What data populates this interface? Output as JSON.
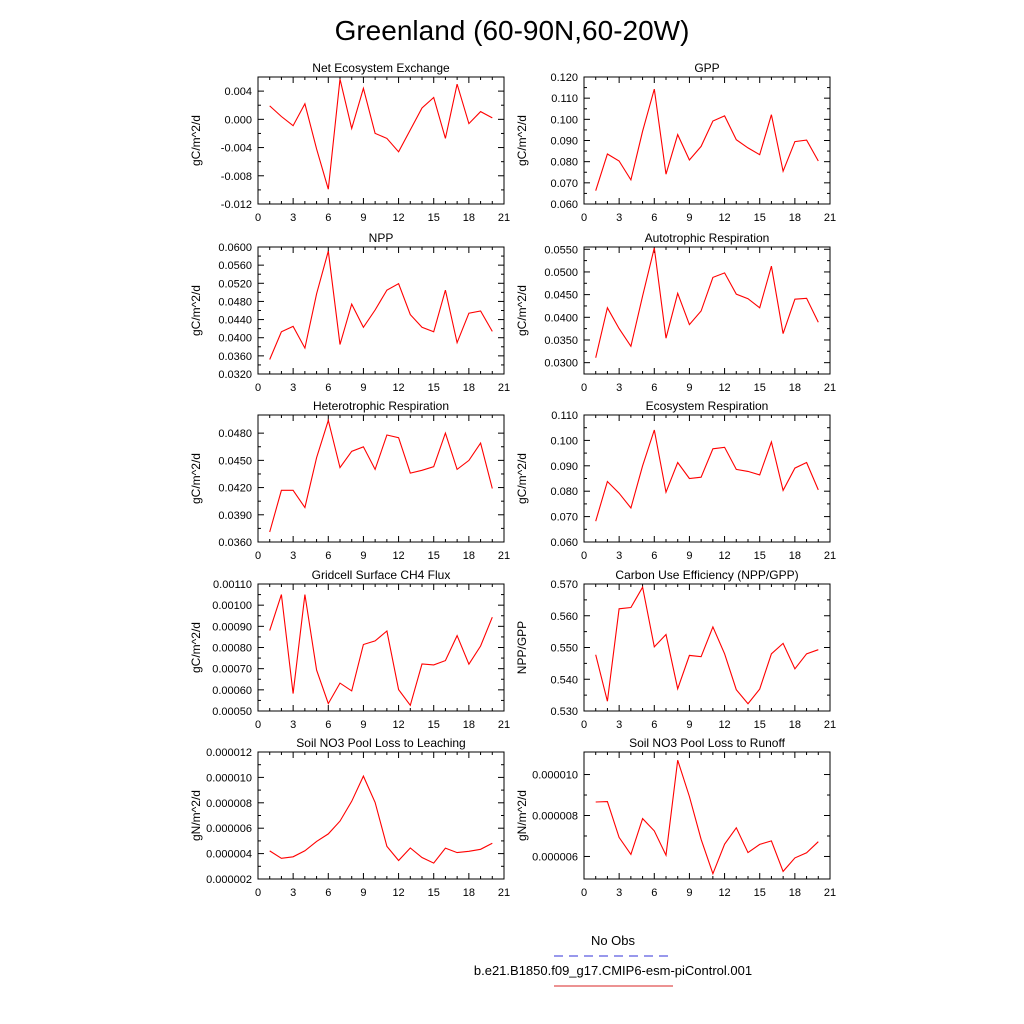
{
  "figure": {
    "title": "Greenland (60-90N,60-20W)",
    "legend": [
      {
        "label": "No Obs",
        "color": "#5a5ae0",
        "dash": true
      },
      {
        "label": "b.e21.B1850.f09_g17.CMIP6-esm-piControl.001",
        "color": "#e05050",
        "dash": false
      }
    ],
    "colors": {
      "series": "#ff0000",
      "axis": "#000000"
    }
  },
  "chart_data": [
    {
      "type": "line",
      "title": "Net Ecosystem Exchange",
      "ylabel": "gC/m^2/d",
      "xlim": [
        0,
        21
      ],
      "xticks": [
        "0",
        "3",
        "6",
        "9",
        "12",
        "15",
        "18",
        "21"
      ],
      "ylim": [
        -0.012,
        0.006
      ],
      "yticks": [
        "-0.012",
        "-0.008",
        "-0.004",
        "0.000",
        "0.004"
      ],
      "x": [
        1,
        2,
        3,
        4,
        5,
        6,
        7,
        8,
        9,
        10,
        11,
        12,
        13,
        14,
        15,
        16,
        17,
        18,
        19,
        20
      ],
      "series": [
        {
          "values": [
            0.0019,
            0.0004,
            -0.0009,
            0.0022,
            -0.0042,
            -0.0099,
            0.0057,
            -0.0013,
            0.0044,
            -0.002,
            -0.0027,
            -0.0046,
            -0.0015,
            0.0016,
            0.0031,
            -0.0027,
            0.005,
            -0.0006,
            0.0011,
            0.0002
          ]
        }
      ]
    },
    {
      "type": "line",
      "title": "GPP",
      "ylabel": "gC/m^2/d",
      "xlim": [
        0,
        21
      ],
      "xticks": [
        "0",
        "3",
        "6",
        "9",
        "12",
        "15",
        "18",
        "21"
      ],
      "ylim": [
        0.06,
        0.12
      ],
      "yticks": [
        "0.060",
        "0.070",
        "0.080",
        "0.090",
        "0.100",
        "0.110",
        "0.120"
      ],
      "x": [
        1,
        2,
        3,
        4,
        5,
        6,
        7,
        8,
        9,
        10,
        11,
        12,
        13,
        14,
        15,
        16,
        17,
        18,
        19,
        20
      ],
      "series": [
        {
          "values": [
            0.0663,
            0.0836,
            0.0803,
            0.0714,
            0.0944,
            0.1143,
            0.0741,
            0.0928,
            0.0808,
            0.0872,
            0.0992,
            0.1016,
            0.0904,
            0.0865,
            0.0833,
            0.1022,
            0.0755,
            0.0895,
            0.0902,
            0.0803
          ]
        }
      ]
    },
    {
      "type": "line",
      "title": "NPP",
      "ylabel": "gC/m^2/d",
      "xlim": [
        0,
        21
      ],
      "xticks": [
        "0",
        "3",
        "6",
        "9",
        "12",
        "15",
        "18",
        "21"
      ],
      "ylim": [
        0.032,
        0.06
      ],
      "yticks": [
        "0.0320",
        "0.0360",
        "0.0400",
        "0.0440",
        "0.0480",
        "0.0520",
        "0.0560",
        "0.0600"
      ],
      "x": [
        1,
        2,
        3,
        4,
        5,
        6,
        7,
        8,
        9,
        10,
        11,
        12,
        13,
        14,
        15,
        16,
        17,
        18,
        19,
        20
      ],
      "series": [
        {
          "values": [
            0.0352,
            0.0413,
            0.0425,
            0.0377,
            0.0497,
            0.0591,
            0.0385,
            0.0474,
            0.0423,
            0.0461,
            0.0505,
            0.0519,
            0.0451,
            0.0423,
            0.0413,
            0.0505,
            0.0389,
            0.0454,
            0.0459,
            0.0414
          ]
        }
      ]
    },
    {
      "type": "line",
      "title": "Autotrophic Respiration",
      "ylabel": "gC/m^2/d",
      "xlim": [
        0,
        21
      ],
      "xticks": [
        "0",
        "3",
        "6",
        "9",
        "12",
        "15",
        "18",
        "21"
      ],
      "ylim": [
        0.0275,
        0.0555
      ],
      "yticks": [
        "0.0300",
        "0.0350",
        "0.0400",
        "0.0450",
        "0.0500",
        "0.0550"
      ],
      "x": [
        1,
        2,
        3,
        4,
        5,
        6,
        7,
        8,
        9,
        10,
        11,
        12,
        13,
        14,
        15,
        16,
        17,
        18,
        19,
        20
      ],
      "series": [
        {
          "values": [
            0.0311,
            0.0421,
            0.0375,
            0.0336,
            0.0447,
            0.0553,
            0.0354,
            0.0453,
            0.0384,
            0.0414,
            0.0488,
            0.0498,
            0.0451,
            0.0441,
            0.0421,
            0.0513,
            0.0364,
            0.044,
            0.0442,
            0.0389
          ]
        }
      ]
    },
    {
      "type": "line",
      "title": "Heterotrophic Respiration",
      "ylabel": "gC/m^2/d",
      "xlim": [
        0,
        21
      ],
      "xticks": [
        "0",
        "3",
        "6",
        "9",
        "12",
        "15",
        "18",
        "21"
      ],
      "ylim": [
        0.036,
        0.05
      ],
      "yticks": [
        "0.0360",
        "0.0390",
        "0.0420",
        "0.0450",
        "0.0480"
      ],
      "x": [
        1,
        2,
        3,
        4,
        5,
        6,
        7,
        8,
        9,
        10,
        11,
        12,
        13,
        14,
        15,
        16,
        17,
        18,
        19,
        20
      ],
      "series": [
        {
          "values": [
            0.0371,
            0.0417,
            0.0417,
            0.0398,
            0.0453,
            0.0494,
            0.0442,
            0.046,
            0.0465,
            0.044,
            0.0478,
            0.0475,
            0.0436,
            0.0439,
            0.0443,
            0.048,
            0.044,
            0.045,
            0.0469,
            0.0419
          ]
        }
      ]
    },
    {
      "type": "line",
      "title": "Ecosystem Respiration",
      "ylabel": "gC/m^2/d",
      "xlim": [
        0,
        21
      ],
      "xticks": [
        "0",
        "3",
        "6",
        "9",
        "12",
        "15",
        "18",
        "21"
      ],
      "ylim": [
        0.06,
        0.11
      ],
      "yticks": [
        "0.060",
        "0.070",
        "0.080",
        "0.090",
        "0.100",
        "0.110"
      ],
      "x": [
        1,
        2,
        3,
        4,
        5,
        6,
        7,
        8,
        9,
        10,
        11,
        12,
        13,
        14,
        15,
        16,
        17,
        18,
        19,
        20
      ],
      "series": [
        {
          "values": [
            0.0682,
            0.0838,
            0.0792,
            0.0734,
            0.09,
            0.1041,
            0.0796,
            0.0913,
            0.085,
            0.0855,
            0.0967,
            0.0973,
            0.0886,
            0.0878,
            0.0864,
            0.0994,
            0.0803,
            0.0891,
            0.0913,
            0.0805
          ]
        }
      ]
    },
    {
      "type": "line",
      "title": "Gridcell Surface CH4 Flux",
      "ylabel": "gC/m^2/d",
      "xlim": [
        0,
        21
      ],
      "xticks": [
        "0",
        "3",
        "6",
        "9",
        "12",
        "15",
        "18",
        "21"
      ],
      "ylim": [
        0.0005,
        0.0011
      ],
      "yticks": [
        "0.00050",
        "0.00060",
        "0.00070",
        "0.00080",
        "0.00090",
        "0.00100",
        "0.00110"
      ],
      "x": [
        1,
        2,
        3,
        4,
        5,
        6,
        7,
        8,
        9,
        10,
        11,
        12,
        13,
        14,
        15,
        16,
        17,
        18,
        19,
        20
      ],
      "series": [
        {
          "values": [
            0.00088,
            0.00105,
            0.000582,
            0.00105,
            0.000693,
            0.000535,
            0.000632,
            0.000595,
            0.000814,
            0.000831,
            0.000878,
            0.000601,
            0.000527,
            0.000722,
            0.000718,
            0.000738,
            0.000856,
            0.000721,
            0.000807,
            0.000943
          ]
        }
      ]
    },
    {
      "type": "line",
      "title": "Carbon Use Efficiency (NPP/GPP)",
      "ylabel": "NPP/GPP",
      "xlim": [
        0,
        21
      ],
      "xticks": [
        "0",
        "3",
        "6",
        "9",
        "12",
        "15",
        "18",
        "21"
      ],
      "ylim": [
        0.53,
        0.57
      ],
      "yticks": [
        "0.530",
        "0.540",
        "0.550",
        "0.560",
        "0.570"
      ],
      "x": [
        1,
        2,
        3,
        4,
        5,
        6,
        7,
        8,
        9,
        10,
        11,
        12,
        13,
        14,
        15,
        16,
        17,
        18,
        19,
        20
      ],
      "series": [
        {
          "values": [
            0.5477,
            0.5331,
            0.5622,
            0.5626,
            0.569,
            0.5502,
            0.5541,
            0.537,
            0.5475,
            0.5471,
            0.5565,
            0.548,
            0.5367,
            0.5323,
            0.5369,
            0.548,
            0.5513,
            0.5433,
            0.548,
            0.5493
          ]
        }
      ]
    },
    {
      "type": "line",
      "title": "Soil NO3 Pool Loss to Leaching",
      "ylabel": "gN/m^2/d",
      "xlim": [
        0,
        21
      ],
      "xticks": [
        "0",
        "3",
        "6",
        "9",
        "12",
        "15",
        "18",
        "21"
      ],
      "ylim": [
        2e-06,
        1.2e-05
      ],
      "yticks": [
        "0.000002",
        "0.000004",
        "0.000006",
        "0.000008",
        "0.000010",
        "0.000012"
      ],
      "x": [
        1,
        2,
        3,
        4,
        5,
        6,
        7,
        8,
        9,
        10,
        11,
        12,
        13,
        14,
        15,
        16,
        17,
        18,
        19,
        20
      ],
      "series": [
        {
          "values": [
            4.21e-06,
            3.63e-06,
            3.75e-06,
            4.22e-06,
            4.96e-06,
            5.55e-06,
            6.56e-06,
            8.12e-06,
            1.01e-05,
            8.03e-06,
            4.57e-06,
            3.46e-06,
            4.44e-06,
            3.69e-06,
            3.25e-06,
            4.43e-06,
            4.08e-06,
            4.18e-06,
            4.34e-06,
            4.82e-06
          ]
        }
      ]
    },
    {
      "type": "line",
      "title": "Soil NO3 Pool Loss to Runoff",
      "ylabel": "gN/m^2/d",
      "xlim": [
        0,
        21
      ],
      "xticks": [
        "0",
        "3",
        "6",
        "9",
        "12",
        "15",
        "18",
        "21"
      ],
      "ylim": [
        4.9e-06,
        1.11e-05
      ],
      "yticks": [
        "0.000006",
        "0.000008",
        "0.000010"
      ],
      "x": [
        1,
        2,
        3,
        4,
        5,
        6,
        7,
        8,
        9,
        10,
        11,
        12,
        13,
        14,
        15,
        16,
        17,
        18,
        19,
        20
      ],
      "series": [
        {
          "values": [
            8.66e-06,
            8.68e-06,
            6.93e-06,
            6.1e-06,
            7.85e-06,
            7.25e-06,
            6.06e-06,
            1.07e-05,
            8.93e-06,
            6.84e-06,
            5.16e-06,
            6.6e-06,
            7.4e-06,
            6.19e-06,
            6.59e-06,
            6.76e-06,
            5.27e-06,
            5.93e-06,
            6.18e-06,
            6.72e-06
          ]
        }
      ]
    }
  ]
}
